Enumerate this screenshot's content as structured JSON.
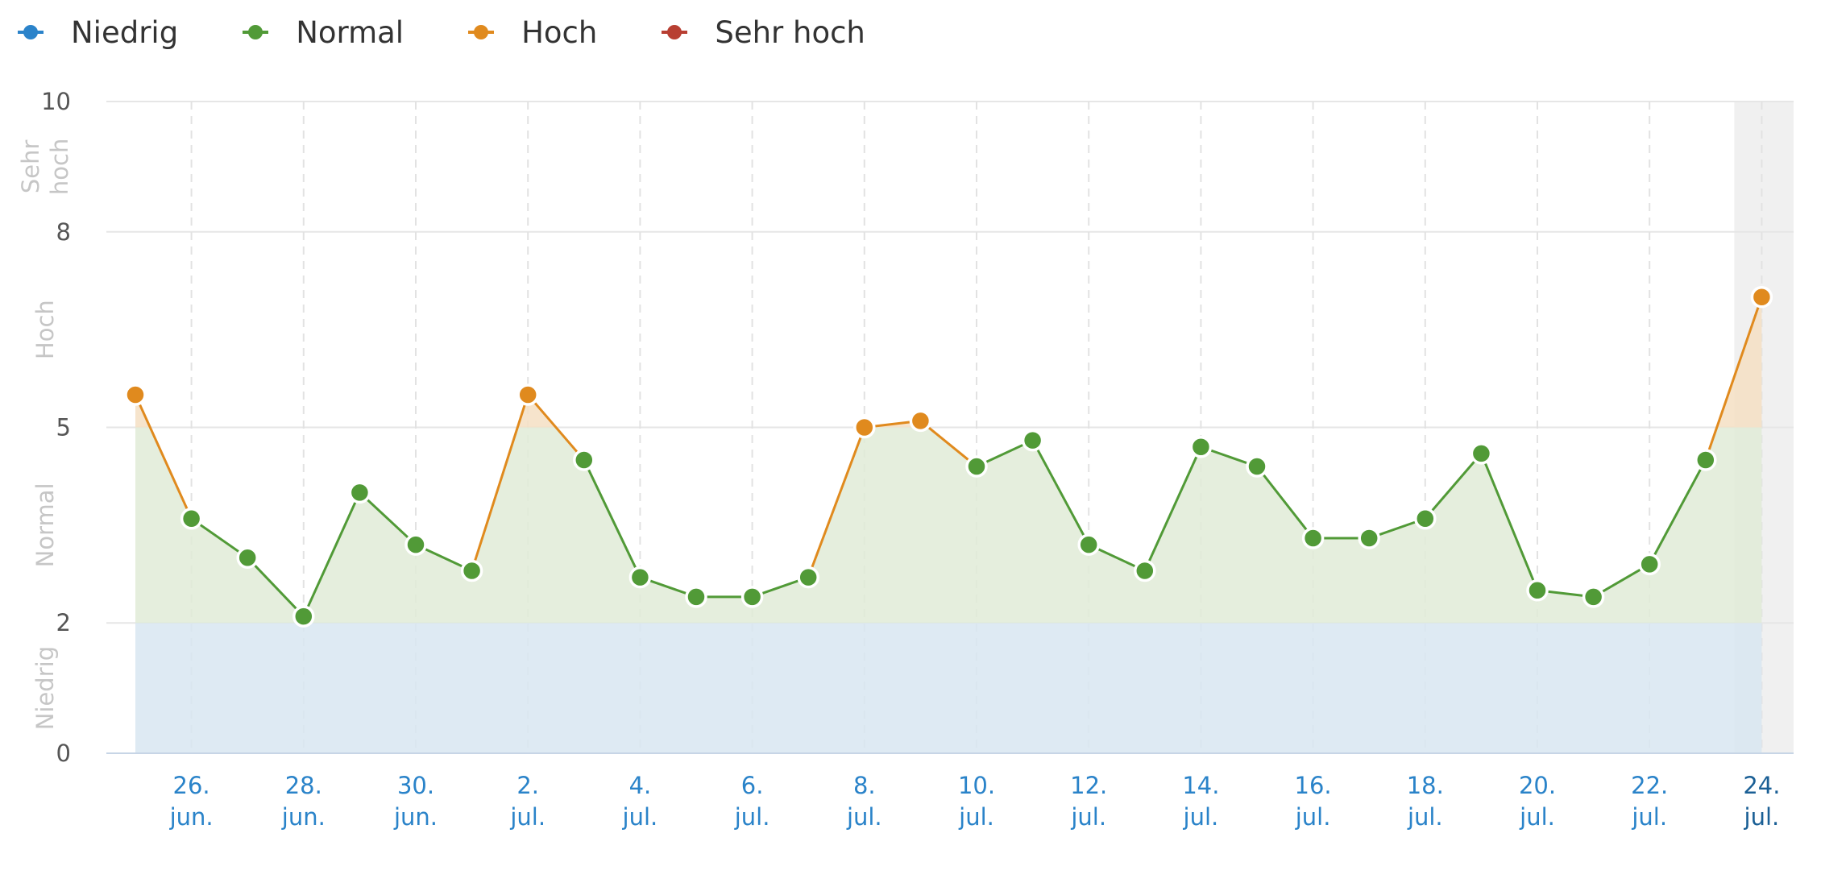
{
  "legend": [
    {
      "label": "Niedrig",
      "color": "#2b83ca"
    },
    {
      "label": "Normal",
      "color": "#519a37"
    },
    {
      "label": "Hoch",
      "color": "#e08a1e"
    },
    {
      "label": "Sehr hoch",
      "color": "#b83f32"
    }
  ],
  "chart_data": {
    "type": "line",
    "title": "",
    "xlabel": "",
    "ylabel": "",
    "ylim": [
      0,
      10
    ],
    "y_ticks": [
      "0",
      "2",
      "5",
      "8",
      "10"
    ],
    "grid": true,
    "legend_position": "top-left",
    "bands": [
      {
        "label": "Niedrig",
        "from": 0,
        "to": 2,
        "color": "#d8e6f1"
      },
      {
        "label": "Normal",
        "from": 2,
        "to": 5,
        "color": "#e0ebd7"
      },
      {
        "label": "Hoch",
        "from": 5,
        "to": 8,
        "color": "#f5dfc3"
      },
      {
        "label": "Sehr hoch",
        "from": 8,
        "to": 10,
        "color": "#f3d6d1"
      }
    ],
    "x": [
      "25. jun.",
      "26. jun.",
      "27. jun.",
      "28. jun.",
      "29. jun.",
      "30. jun.",
      "1. jul.",
      "2. jul.",
      "3. jul.",
      "4. jul.",
      "5. jul.",
      "6. jul.",
      "7. jul.",
      "8. jul.",
      "9. jul.",
      "10. jul.",
      "11. jul.",
      "12. jul.",
      "13. jul.",
      "14. jul.",
      "15. jul.",
      "16. jul.",
      "17. jul.",
      "18. jul.",
      "19. jul.",
      "20. jul.",
      "21. jul.",
      "22. jul.",
      "23. jul.",
      "24. jul."
    ],
    "x_ticks": [
      {
        "day": "26.",
        "month": "jun."
      },
      {
        "day": "28.",
        "month": "jun."
      },
      {
        "day": "30.",
        "month": "jun."
      },
      {
        "day": "2.",
        "month": "jul."
      },
      {
        "day": "4.",
        "month": "jul."
      },
      {
        "day": "6.",
        "month": "jul."
      },
      {
        "day": "8.",
        "month": "jul."
      },
      {
        "day": "10.",
        "month": "jul."
      },
      {
        "day": "12.",
        "month": "jul."
      },
      {
        "day": "14.",
        "month": "jul."
      },
      {
        "day": "16.",
        "month": "jul."
      },
      {
        "day": "18.",
        "month": "jul."
      },
      {
        "day": "20.",
        "month": "jul."
      },
      {
        "day": "22.",
        "month": "jul."
      },
      {
        "day": "24.",
        "month": "jul."
      }
    ],
    "series": [
      {
        "values": [
          5.5,
          3.6,
          3.0,
          2.1,
          4.0,
          3.2,
          2.8,
          5.5,
          4.5,
          2.7,
          2.4,
          2.4,
          2.7,
          5.0,
          5.1,
          4.4,
          4.8,
          3.2,
          2.8,
          4.7,
          4.4,
          3.3,
          3.3,
          3.6,
          4.6,
          2.5,
          2.4,
          2.9,
          4.5,
          7.0
        ]
      }
    ],
    "current_index": 29
  }
}
